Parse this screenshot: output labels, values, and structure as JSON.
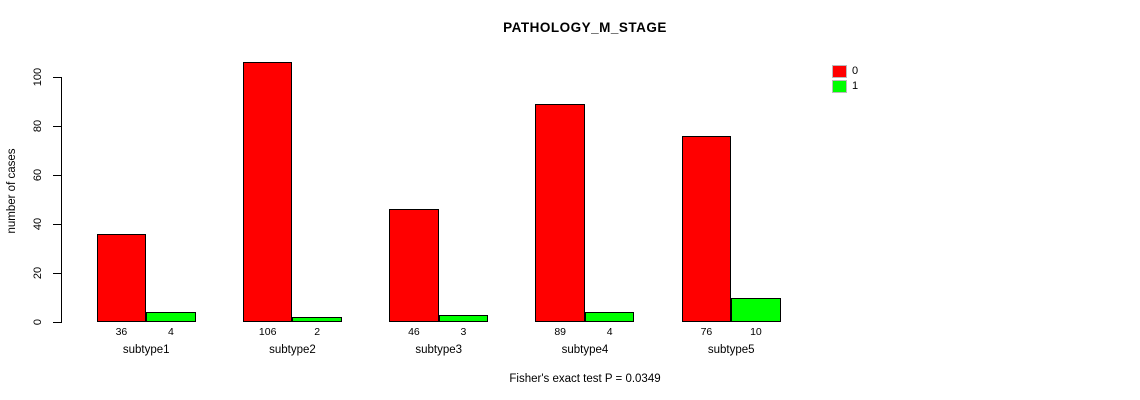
{
  "chart_data": {
    "type": "bar",
    "title": "PATHOLOGY_M_STAGE",
    "xlabel": "",
    "ylabel": "number of cases",
    "categories": [
      "subtype1",
      "subtype2",
      "subtype3",
      "subtype4",
      "subtype5"
    ],
    "series": [
      {
        "name": "0",
        "color": "#FF0000",
        "values": [
          36,
          106,
          46,
          89,
          76
        ]
      },
      {
        "name": "1",
        "color": "#00FF00",
        "values": [
          4,
          2,
          3,
          4,
          10
        ]
      }
    ],
    "value_labels_shown": true,
    "yticks": [
      0,
      20,
      40,
      60,
      80,
      100
    ],
    "ylim": [
      0,
      110
    ],
    "grid": false,
    "legend_position": "right",
    "footnote": "Fisher's exact test P = 0.0349"
  },
  "colors": {
    "background": "#FFFFFF",
    "axis": "#000000",
    "series0": "#FF0000",
    "series1": "#00FF00"
  }
}
